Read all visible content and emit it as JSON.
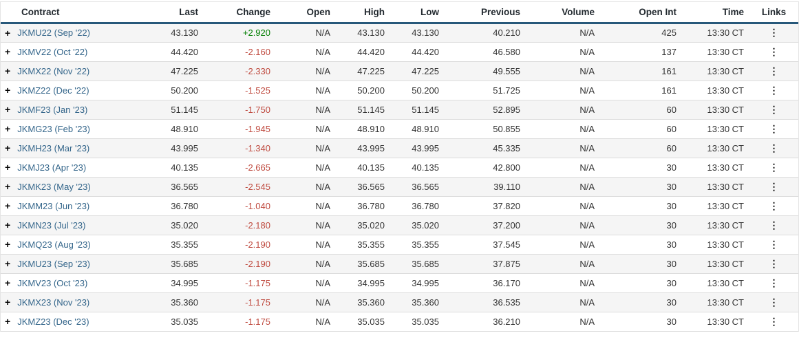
{
  "icons": {
    "expand": "+",
    "links_menu": "⋮"
  },
  "colors": {
    "header_border": "#27587a",
    "link_blue": "#33658a",
    "change_up": "#007e00",
    "change_down": "#bf4a3f",
    "row_alt_bg": "#f5f5f5"
  },
  "table": {
    "columns": [
      {
        "key": "contract",
        "label": "Contract",
        "align": "left"
      },
      {
        "key": "last",
        "label": "Last",
        "align": "right"
      },
      {
        "key": "change",
        "label": "Change",
        "align": "right"
      },
      {
        "key": "open",
        "label": "Open",
        "align": "right"
      },
      {
        "key": "high",
        "label": "High",
        "align": "right"
      },
      {
        "key": "low",
        "label": "Low",
        "align": "right"
      },
      {
        "key": "previous",
        "label": "Previous",
        "align": "right"
      },
      {
        "key": "volume",
        "label": "Volume",
        "align": "right"
      },
      {
        "key": "open_int",
        "label": "Open Int",
        "align": "right"
      },
      {
        "key": "time",
        "label": "Time",
        "align": "right"
      },
      {
        "key": "links",
        "label": "Links",
        "align": "center"
      }
    ],
    "rows": [
      {
        "contract": "JKMU22 (Sep '22)",
        "last": "43.130",
        "change": "+2.920",
        "open": "N/A",
        "high": "43.130",
        "low": "43.130",
        "previous": "40.210",
        "volume": "N/A",
        "open_int": "425",
        "time": "13:30 CT"
      },
      {
        "contract": "JKMV22 (Oct '22)",
        "last": "44.420",
        "change": "-2.160",
        "open": "N/A",
        "high": "44.420",
        "low": "44.420",
        "previous": "46.580",
        "volume": "N/A",
        "open_int": "137",
        "time": "13:30 CT"
      },
      {
        "contract": "JKMX22 (Nov '22)",
        "last": "47.225",
        "change": "-2.330",
        "open": "N/A",
        "high": "47.225",
        "low": "47.225",
        "previous": "49.555",
        "volume": "N/A",
        "open_int": "161",
        "time": "13:30 CT"
      },
      {
        "contract": "JKMZ22 (Dec '22)",
        "last": "50.200",
        "change": "-1.525",
        "open": "N/A",
        "high": "50.200",
        "low": "50.200",
        "previous": "51.725",
        "volume": "N/A",
        "open_int": "161",
        "time": "13:30 CT"
      },
      {
        "contract": "JKMF23 (Jan '23)",
        "last": "51.145",
        "change": "-1.750",
        "open": "N/A",
        "high": "51.145",
        "low": "51.145",
        "previous": "52.895",
        "volume": "N/A",
        "open_int": "60",
        "time": "13:30 CT"
      },
      {
        "contract": "JKMG23 (Feb '23)",
        "last": "48.910",
        "change": "-1.945",
        "open": "N/A",
        "high": "48.910",
        "low": "48.910",
        "previous": "50.855",
        "volume": "N/A",
        "open_int": "60",
        "time": "13:30 CT"
      },
      {
        "contract": "JKMH23 (Mar '23)",
        "last": "43.995",
        "change": "-1.340",
        "open": "N/A",
        "high": "43.995",
        "low": "43.995",
        "previous": "45.335",
        "volume": "N/A",
        "open_int": "60",
        "time": "13:30 CT"
      },
      {
        "contract": "JKMJ23 (Apr '23)",
        "last": "40.135",
        "change": "-2.665",
        "open": "N/A",
        "high": "40.135",
        "low": "40.135",
        "previous": "42.800",
        "volume": "N/A",
        "open_int": "30",
        "time": "13:30 CT"
      },
      {
        "contract": "JKMK23 (May '23)",
        "last": "36.565",
        "change": "-2.545",
        "open": "N/A",
        "high": "36.565",
        "low": "36.565",
        "previous": "39.110",
        "volume": "N/A",
        "open_int": "30",
        "time": "13:30 CT"
      },
      {
        "contract": "JKMM23 (Jun '23)",
        "last": "36.780",
        "change": "-1.040",
        "open": "N/A",
        "high": "36.780",
        "low": "36.780",
        "previous": "37.820",
        "volume": "N/A",
        "open_int": "30",
        "time": "13:30 CT"
      },
      {
        "contract": "JKMN23 (Jul '23)",
        "last": "35.020",
        "change": "-2.180",
        "open": "N/A",
        "high": "35.020",
        "low": "35.020",
        "previous": "37.200",
        "volume": "N/A",
        "open_int": "30",
        "time": "13:30 CT"
      },
      {
        "contract": "JKMQ23 (Aug '23)",
        "last": "35.355",
        "change": "-2.190",
        "open": "N/A",
        "high": "35.355",
        "low": "35.355",
        "previous": "37.545",
        "volume": "N/A",
        "open_int": "30",
        "time": "13:30 CT"
      },
      {
        "contract": "JKMU23 (Sep '23)",
        "last": "35.685",
        "change": "-2.190",
        "open": "N/A",
        "high": "35.685",
        "low": "35.685",
        "previous": "37.875",
        "volume": "N/A",
        "open_int": "30",
        "time": "13:30 CT"
      },
      {
        "contract": "JKMV23 (Oct '23)",
        "last": "34.995",
        "change": "-1.175",
        "open": "N/A",
        "high": "34.995",
        "low": "34.995",
        "previous": "36.170",
        "volume": "N/A",
        "open_int": "30",
        "time": "13:30 CT"
      },
      {
        "contract": "JKMX23 (Nov '23)",
        "last": "35.360",
        "change": "-1.175",
        "open": "N/A",
        "high": "35.360",
        "low": "35.360",
        "previous": "36.535",
        "volume": "N/A",
        "open_int": "30",
        "time": "13:30 CT"
      },
      {
        "contract": "JKMZ23 (Dec '23)",
        "last": "35.035",
        "change": "-1.175",
        "open": "N/A",
        "high": "35.035",
        "low": "35.035",
        "previous": "36.210",
        "volume": "N/A",
        "open_int": "30",
        "time": "13:30 CT"
      }
    ]
  }
}
